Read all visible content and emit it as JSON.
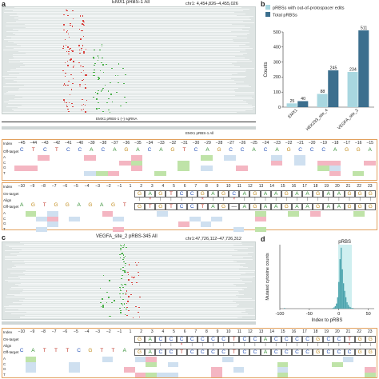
{
  "panel_a": {
    "letter": "a",
    "title": "EMX1 pRBS-1 All",
    "coord": "chr1: 4,454,826–4,455,026",
    "sgrna_label": "EMX1 pRBS-1 (–) sgRNA",
    "track_label": "EMX1 pRBS-1 All",
    "index_label": "Index",
    "on_target_label": "On-target",
    "align_label": "Align",
    "off_target_label": "Off-target",
    "row_bases": [
      "A",
      "C",
      "G",
      "T"
    ],
    "index_row1": [
      "−45",
      "−44",
      "−43",
      "−42",
      "−41",
      "−40",
      "−39",
      "−38",
      "−37",
      "−36",
      "−35",
      "−34",
      "−33",
      "−32",
      "−31",
      "−30",
      "−29",
      "−28",
      "−27",
      "−26",
      "−25",
      "−24",
      "−23",
      "−22",
      "−21",
      "−20",
      "−19",
      "−18",
      "−17",
      "−16",
      "−15"
    ],
    "seq_row1": [
      "C",
      "T",
      "C",
      "T",
      "C",
      "C",
      "A",
      "C",
      "A",
      "G",
      "A",
      "C",
      "A",
      "G",
      "T",
      "C",
      "A",
      "G",
      "C",
      "C",
      "A",
      "C",
      "A",
      "G",
      "C",
      "C",
      "C",
      "A",
      "G",
      "G",
      "A"
    ],
    "index_row2": [
      "−10",
      "−9",
      "−8",
      "−7",
      "−6",
      "−5",
      "−4",
      "−3",
      "−2",
      "−1",
      "1",
      "2",
      "3",
      "4",
      "5",
      "6",
      "7",
      "8",
      "9",
      "10",
      "11",
      "12",
      "13",
      "14",
      "15",
      "16",
      "17",
      "18",
      "19",
      "20",
      "21",
      "22",
      "23"
    ],
    "off_seq_left": [
      "A",
      "G",
      "T",
      "G",
      "G",
      "A",
      "G",
      "A",
      "G",
      "T"
    ],
    "on_target_seq": [
      "G",
      "A",
      "G",
      "T",
      "C",
      "C",
      "G",
      "A",
      "G",
      "C",
      "A",
      "G",
      "A",
      "A",
      "G",
      "A",
      "A",
      "G",
      "A",
      "A",
      "G",
      "G",
      "G"
    ],
    "off_target_seq": [
      "G",
      "T",
      "G",
      "T",
      "C",
      "C",
      "T",
      "A",
      "G",
      "—",
      "A",
      "G",
      "A",
      "A",
      "G",
      "A",
      "A",
      "G",
      "A",
      "A",
      "G",
      "G",
      "G"
    ]
  },
  "panel_b": {
    "letter": "b",
    "chart_data": {
      "type": "bar",
      "categories": [
        "EMX1",
        "HEK293_site_4",
        "VEGFA_site_2"
      ],
      "series": [
        {
          "name": "pRBSs with out-of-protospacer edits",
          "values": [
            25,
            88,
            234
          ]
        },
        {
          "name": "Total pRBSs",
          "values": [
            40,
            245,
            511
          ]
        }
      ],
      "ylabel": "Counts",
      "ylim": [
        0,
        500
      ],
      "yticks": [
        0,
        100,
        200,
        300,
        400,
        500
      ],
      "colors": [
        "#a9d7e0",
        "#3c6f8e"
      ],
      "legend": "top"
    }
  },
  "panel_c": {
    "letter": "c",
    "title": "VEGFA_site_2 pRBS-345 All",
    "coord": "chr1:47,726,112–47,726,312",
    "index_label": "Index",
    "on_target_label": "On-target",
    "align_label": "Align",
    "off_target_label": "Off-target",
    "index_row": [
      "−10",
      "−9",
      "−8",
      "−7",
      "−6",
      "−5",
      "−4",
      "−3",
      "−2",
      "−1",
      "1",
      "2",
      "3",
      "4",
      "5",
      "6",
      "7",
      "8",
      "9",
      "10",
      "11",
      "12",
      "13",
      "14",
      "15",
      "16",
      "17",
      "18",
      "19",
      "20",
      "21",
      "22",
      "23"
    ],
    "off_seq_left": [
      "C",
      "A",
      "T",
      "T",
      "T",
      "C",
      "G",
      "T",
      "T",
      "A"
    ],
    "on_target_seq": [
      "G",
      "A",
      "C",
      "C",
      "C",
      "C",
      "C",
      "C",
      "C",
      "T",
      "C",
      "C",
      "A",
      "C",
      "C",
      "C",
      "C",
      "G",
      "C",
      "C",
      "T",
      "G",
      "G"
    ],
    "off_target_seq": [
      "G",
      "A",
      "C",
      "C",
      "T",
      "C",
      "C",
      "C",
      "C",
      "T",
      "C",
      "C",
      "A",
      "C",
      "C",
      "C",
      "C",
      "G",
      "C",
      "C",
      "C",
      "G",
      "G"
    ]
  },
  "panel_d": {
    "letter": "d",
    "chart_data": {
      "type": "bar",
      "title": "pRBS",
      "xlabel": "Index to pRBS",
      "ylabel": "Mutated cytosine counts",
      "xlim": [
        -100,
        60
      ],
      "xticks": [
        -100,
        -50,
        0,
        50
      ],
      "x": [
        -92,
        -10,
        -8,
        -6,
        -4,
        -2,
        0,
        2,
        4,
        6,
        8,
        10,
        12,
        14,
        16,
        18,
        20,
        22,
        24
      ],
      "values": [
        1,
        1,
        2,
        4,
        8,
        18,
        42,
        78,
        96,
        62,
        40,
        28,
        18,
        10,
        6,
        3,
        2,
        1,
        1
      ],
      "bar_color": "#4aa3ad",
      "highlight_color": "#cfeff0"
    }
  }
}
